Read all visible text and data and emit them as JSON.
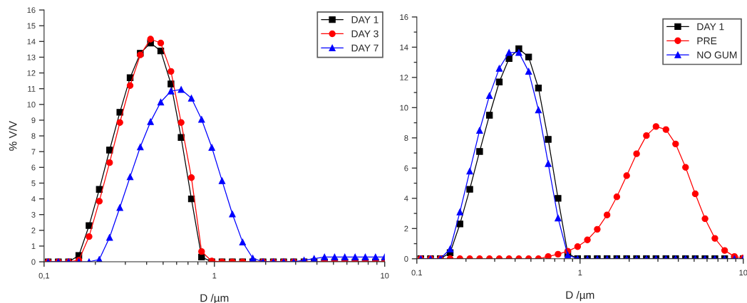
{
  "chart_data": [
    {
      "type": "line",
      "xlabel": "D /µm",
      "ylabel": "% V/V",
      "log": "x",
      "legend": "top right",
      "grid": false,
      "line_style": "solid",
      "x": [
        0.1057,
        0.1213,
        0.1393,
        0.16,
        0.1837,
        0.211,
        0.2425,
        0.2786,
        0.32,
        0.3673,
        0.4217,
        0.4842,
        0.556,
        0.638,
        0.733,
        0.841,
        0.966,
        1.109,
        1.275,
        1.464,
        1.68,
        1.93,
        2.22,
        2.55,
        2.92,
        3.36,
        3.85,
        4.43,
        5.08,
        5.83,
        6.7,
        7.69,
        8.83,
        10.0
      ],
      "xlim": [
        0.1,
        10
      ],
      "xticks": [
        {
          "value": 0.1,
          "label": "0,1"
        },
        {
          "value": 0.2,
          "label": null
        },
        {
          "value": 0.3,
          "label": null
        },
        {
          "value": 0.4,
          "label": null
        },
        {
          "value": 0.5,
          "label": null
        },
        {
          "value": 0.6,
          "label": null
        },
        {
          "value": 0.7,
          "label": null
        },
        {
          "value": 0.8,
          "label": null
        },
        {
          "value": 0.9,
          "label": null
        },
        1,
        {
          "value": 2,
          "label": null
        },
        {
          "value": 3,
          "label": null
        },
        {
          "value": 4,
          "label": null
        },
        {
          "value": 5,
          "label": null
        },
        {
          "value": 6,
          "label": null
        },
        {
          "value": 7,
          "label": null
        },
        {
          "value": 8,
          "label": null
        },
        {
          "value": 9,
          "label": null
        },
        10
      ],
      "ylim": [
        0,
        16
      ],
      "yticks": [
        0,
        1,
        2,
        3,
        4,
        5,
        6,
        7,
        8,
        9,
        10,
        11,
        12,
        13,
        14,
        15,
        16
      ],
      "series": [
        {
          "name": "DAY 1",
          "color": "#000000",
          "marker": "square",
          "values": [
            0,
            0,
            0,
            0.4,
            2.3,
            4.6,
            7.1,
            9.5,
            11.7,
            13.25,
            13.9,
            13.4,
            11.3,
            7.9,
            4.0,
            0.3,
            0,
            0,
            0,
            0,
            0,
            0,
            0,
            0,
            0,
            0,
            0,
            0,
            0,
            0,
            0,
            0,
            0,
            0
          ]
        },
        {
          "name": "DAY 3",
          "color": "#ff0000",
          "marker": "circle",
          "values": [
            0,
            0,
            0,
            0.1,
            1.6,
            3.85,
            6.3,
            8.85,
            11.2,
            13.15,
            14.15,
            13.9,
            12.1,
            8.85,
            5.35,
            0.65,
            0.05,
            0,
            0,
            0,
            0,
            0,
            0,
            0,
            0,
            0,
            0,
            0,
            0,
            0,
            0,
            0,
            0,
            0
          ]
        },
        {
          "name": "DAY 7",
          "color": "#0000ff",
          "marker": "triangle",
          "values": [
            0,
            0,
            0,
            0,
            0,
            0.15,
            1.55,
            3.45,
            5.4,
            7.3,
            8.9,
            10.15,
            10.85,
            10.95,
            10.4,
            9.05,
            7.27,
            5.15,
            3.04,
            1.25,
            0.23,
            0,
            0,
            0,
            0,
            0.1,
            0.2,
            0.3,
            0.3,
            0.3,
            0.3,
            0.3,
            0.3,
            0.3
          ]
        }
      ]
    },
    {
      "type": "line",
      "xlabel": "D /µm",
      "log": "x",
      "legend": "top right",
      "grid": false,
      "line_style": "solid",
      "x": [
        0.1057,
        0.1213,
        0.1393,
        0.16,
        0.1837,
        0.211,
        0.2425,
        0.2786,
        0.32,
        0.3673,
        0.4217,
        0.4842,
        0.556,
        0.638,
        0.733,
        0.841,
        0.966,
        1.109,
        1.275,
        1.464,
        1.68,
        1.93,
        2.22,
        2.55,
        2.92,
        3.36,
        3.85,
        4.43,
        5.08,
        5.83,
        6.7,
        7.69,
        8.83,
        10.0
      ],
      "xlim": [
        0.1,
        10
      ],
      "xticks": [
        0.1,
        {
          "value": 0.2,
          "label": null
        },
        {
          "value": 0.3,
          "label": null
        },
        {
          "value": 0.4,
          "label": null
        },
        {
          "value": 0.5,
          "label": null
        },
        {
          "value": 0.6,
          "label": null
        },
        {
          "value": 0.7,
          "label": null
        },
        {
          "value": 0.8,
          "label": null
        },
        {
          "value": 0.9,
          "label": null
        },
        1,
        {
          "value": 2,
          "label": null
        },
        {
          "value": 3,
          "label": null
        },
        {
          "value": 4,
          "label": null
        },
        {
          "value": 5,
          "label": null
        },
        {
          "value": 6,
          "label": null
        },
        {
          "value": 7,
          "label": null
        },
        {
          "value": 8,
          "label": null
        },
        {
          "value": 9,
          "label": null
        },
        10
      ],
      "ylim": [
        0,
        16
      ],
      "yticks": [
        0,
        {
          "value": 1,
          "label": null
        },
        2,
        {
          "value": 3,
          "label": null
        },
        4,
        {
          "value": 5,
          "label": null
        },
        6,
        {
          "value": 7,
          "label": null
        },
        8,
        {
          "value": 9,
          "label": null
        },
        10,
        {
          "value": 11,
          "label": null
        },
        12,
        {
          "value": 13,
          "label": null
        },
        14,
        {
          "value": 15,
          "label": null
        },
        16
      ],
      "series": [
        {
          "name": "DAY 1",
          "color": "#000000",
          "marker": "square",
          "values": [
            0,
            0,
            0,
            0.4,
            2.3,
            4.6,
            7.1,
            9.5,
            11.7,
            13.25,
            13.9,
            13.35,
            11.3,
            7.9,
            4.0,
            0.35,
            0,
            0,
            0,
            0,
            0,
            0,
            0,
            0,
            0,
            0,
            0,
            0,
            0,
            0,
            0,
            0,
            0,
            0
          ]
        },
        {
          "name": "PRE",
          "color": "#ff0000",
          "marker": "circle",
          "values": [
            0,
            0,
            0,
            0,
            0,
            0,
            0,
            0,
            0,
            0,
            0,
            0,
            0,
            0.15,
            0.3,
            0.5,
            0.8,
            1.25,
            1.95,
            2.9,
            4.1,
            5.5,
            6.95,
            8.15,
            8.75,
            8.55,
            7.6,
            6.05,
            4.3,
            2.65,
            1.35,
            0.55,
            0.15,
            0.05
          ]
        },
        {
          "name": "NO GUM",
          "color": "#0000ff",
          "marker": "triangle",
          "values": [
            0,
            0,
            0,
            0.65,
            3.1,
            5.8,
            8.5,
            10.8,
            12.6,
            13.65,
            13.65,
            12.4,
            9.85,
            6.3,
            2.7,
            0.25,
            0,
            0,
            0,
            0,
            0,
            0,
            0,
            0,
            0,
            0,
            0,
            0,
            0,
            0,
            0,
            0,
            0,
            0
          ]
        }
      ]
    }
  ]
}
